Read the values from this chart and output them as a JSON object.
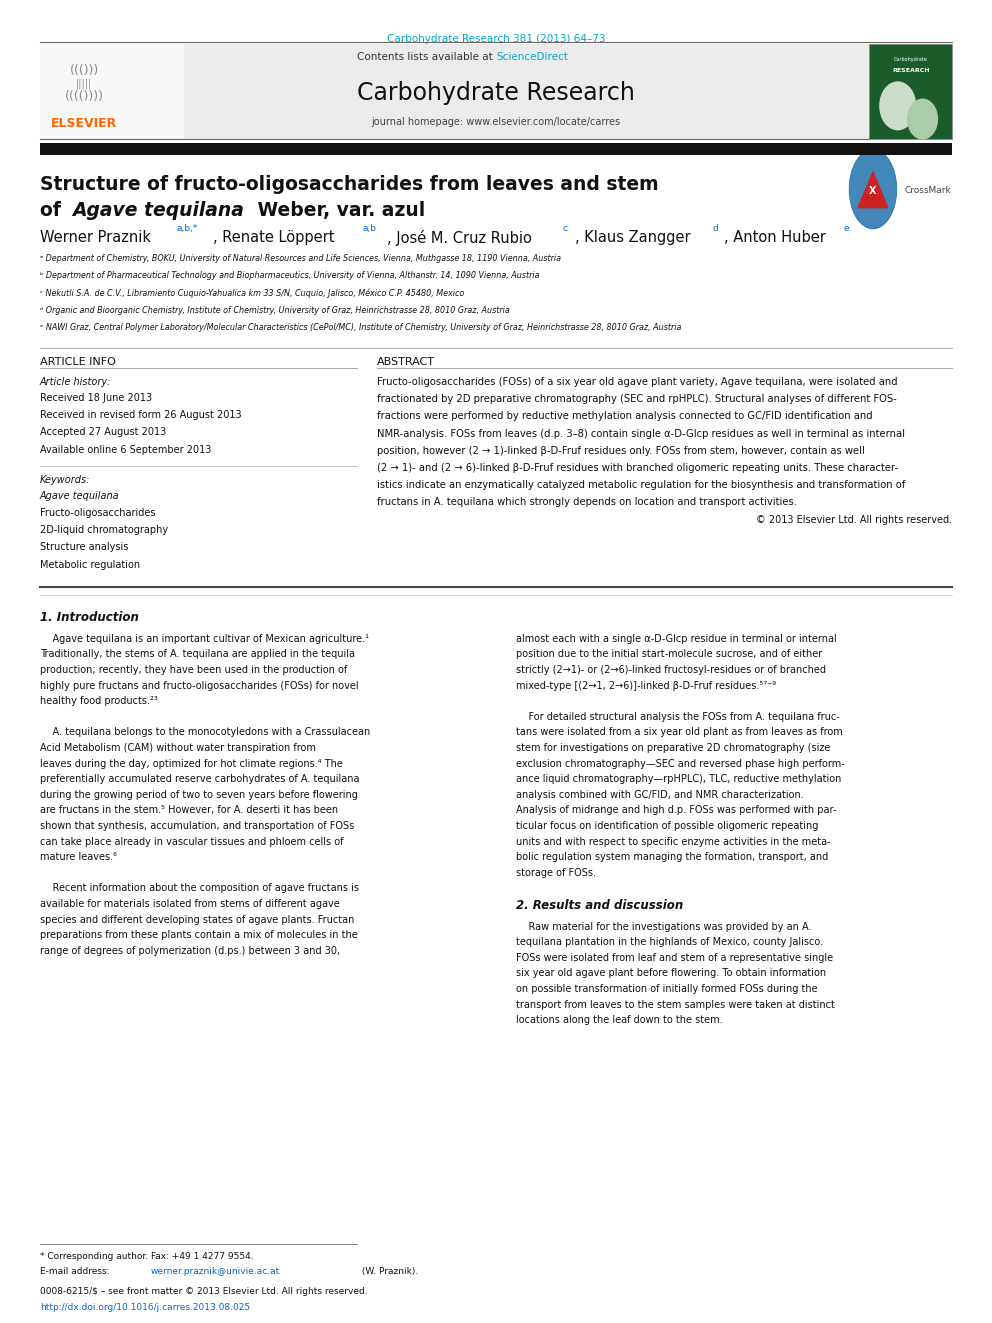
{
  "bg_color": "#ffffff",
  "page_width": 9.92,
  "page_height": 13.23,
  "journal_ref_color": "#00aacc",
  "journal_ref": "Carbohydrate Research 381 (2013) 64–73",
  "elsevier_color": "#ff6600",
  "sciencedirect_color": "#00aacc",
  "aff_a": "ᵃ Department of Chemistry, BOKU, University of Natural Resources and Life Sciences, Vienna, Muthgasse 18, 1190 Vienna, Austria",
  "aff_b": "ᵇ Department of Pharmaceutical Technology and Biopharmaceutics, University of Vienna, Althanstr. 14, 1090 Vienna, Austria",
  "aff_c": "ᶜ Nekutli S.A. de C.V., Libramiento Cuquio-Yahualica km 33 S/N, Cuquio, Jalisco, México C.P. 45480, Mexico",
  "aff_d": "ᵈ Organic and Bioorganic Chemistry, Institute of Chemistry, University of Graz, Heinrichstrasse 28, 8010 Graz, Austria",
  "aff_e": "ᵉ NAWI Graz, Central Polymer Laboratory/Molecular Characteristics (CePol/MC), Institute of Chemistry, University of Graz, Heinrichstrasse 28, 8010 Graz, Austria",
  "abstract_lines": [
    "Fructo-oligosaccharides (FOSs) of a six year old agave plant variety, Agave tequilana, were isolated and",
    "fractionated by 2D preparative chromatography (SEC and rpHPLC). Structural analyses of different FOS-",
    "fractions were performed by reductive methylation analysis connected to GC/FID identification and",
    "NMR-analysis. FOSs from leaves (d.p. 3–8) contain single α-D-Glcp residues as well in terminal as internal",
    "position, however (2 → 1)-linked β-D-Fruf residues only. FOSs from stem, however, contain as well",
    "(2 → 1)- and (2 → 6)-linked β-D-Fruf residues with branched oligomeric repeating units. These character-",
    "istics indicate an enzymatically catalyzed metabolic regulation for the biosynthesis and transformation of",
    "fructans in A. tequilana which strongly depends on location and transport activities."
  ],
  "hist_items": [
    "Received 18 June 2013",
    "Received in revised form 26 August 2013",
    "Accepted 27 August 2013",
    "Available online 6 September 2013"
  ],
  "keywords": [
    "Agave tequilana",
    "Fructo-oligosaccharides",
    "2D-liquid chromatography",
    "Structure analysis",
    "Metabolic regulation"
  ],
  "intro_col1": [
    "    Agave tequilana is an important cultivar of Mexican agriculture.¹",
    "Traditionally, the stems of A. tequilana are applied in the tequila",
    "production; recently, they have been used in the production of",
    "highly pure fructans and fructo-oligosaccharides (FOSs) for novel",
    "healthy food products.²³",
    "",
    "    A. tequilana belongs to the monocotyledons with a Crassulacean",
    "Acid Metabolism (CAM) without water transpiration from",
    "leaves during the day, optimized for hot climate regions.⁴ The",
    "preferentially accumulated reserve carbohydrates of A. tequilana",
    "during the growing period of two to seven years before flowering",
    "are fructans in the stem.⁵ However, for A. deserti it has been",
    "shown that synthesis, accumulation, and transportation of FOSs",
    "can take place already in vascular tissues and phloem cells of",
    "mature leaves.⁶",
    "",
    "    Recent information about the composition of agave fructans is",
    "available for materials isolated from stems of different agave",
    "species and different developing states of agave plants. Fructan",
    "preparations from these plants contain a mix of molecules in the",
    "range of degrees of polymerization (d.ps.) between 3 and 30,"
  ],
  "intro_col2": [
    "almost each with a single α-D-Glcp residue in terminal or internal",
    "position due to the initial start-molecule sucrose, and of either",
    "strictly (2→1)- or (2→6)-linked fructosyl-residues or of branched",
    "mixed-type [(2→1, 2→6)]-linked β-D-Fruf residues.⁵⁷⁻⁹",
    "",
    "    For detailed structural analysis the FOSs from A. tequilana fruc-",
    "tans were isolated from a six year old plant as from leaves as from",
    "stem for investigations on preparative 2D chromatography (size",
    "exclusion chromatography—SEC and reversed phase high perform-",
    "ance liquid chromatography—rpHPLC), TLC, reductive methylation",
    "analysis combined with GC/FID, and NMR characterization.",
    "Analysis of midrange and high d.p. FOSs was performed with par-",
    "ticular focus on identification of possible oligomeric repeating",
    "units and with respect to specific enzyme activities in the meta-",
    "bolic regulation system managing the formation, transport, and",
    "storage of FOSs."
  ],
  "results_col2": [
    "    Raw material for the investigations was provided by an A.",
    "tequilana plantation in the highlands of Mexico, county Jalisco.",
    "FOSs were isolated from leaf and stem of a representative single",
    "six year old agave plant before flowering. To obtain information",
    "on possible transformation of initially formed FOSs during the",
    "transport from leaves to the stem samples were taken at distinct",
    "locations along the leaf down to the stem."
  ]
}
